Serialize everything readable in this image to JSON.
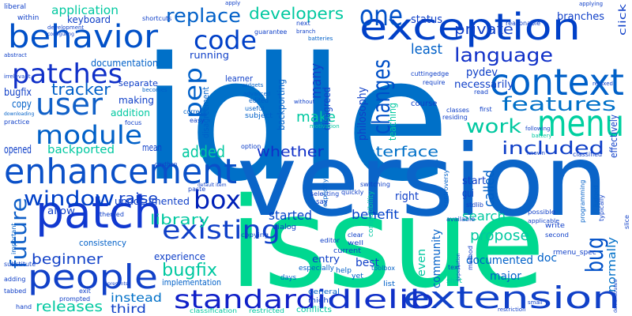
{
  "words": [
    {
      "text": "idle",
      "color": "#0070c8"
    },
    {
      "text": "version",
      "color": "#0a64c8"
    },
    {
      "text": "issue",
      "color": "#00d890"
    },
    {
      "text": "enhancement",
      "color": "#0a50c8"
    },
    {
      "text": "patch",
      "color": "#1038d0"
    },
    {
      "text": "people",
      "color": "#1040c8"
    },
    {
      "text": "behavior",
      "color": "#0050c8"
    },
    {
      "text": "exception",
      "color": "#0040c8"
    },
    {
      "text": "context",
      "color": "#0060c8"
    },
    {
      "text": "menu",
      "color": "#00d0a0"
    },
    {
      "text": "extension",
      "color": "#1040c8"
    },
    {
      "text": "standard",
      "color": "#1020c8"
    },
    {
      "text": "idlelib",
      "color": "#1030c8"
    },
    {
      "text": "existing",
      "color": "#1040c8"
    },
    {
      "text": "box",
      "color": "#0020b8"
    },
    {
      "text": "module",
      "color": "#0060c8"
    },
    {
      "text": "user",
      "color": "#1060c8"
    },
    {
      "text": "patches",
      "color": "#1030c8"
    },
    {
      "text": "code",
      "color": "#0040c8"
    },
    {
      "text": "one",
      "color": "#0050c8"
    },
    {
      "text": "pep",
      "color": "#0060c8"
    },
    {
      "text": "changes",
      "color": "#0050c8"
    },
    {
      "text": "language",
      "color": "#1030c8"
    },
    {
      "text": "features",
      "color": "#0070c8"
    },
    {
      "text": "work",
      "color": "#00c8a0"
    },
    {
      "text": "included",
      "color": "#1040c8"
    },
    {
      "text": "added",
      "color": "#00c8a0"
    },
    {
      "text": "whether",
      "color": "#1030c8"
    },
    {
      "text": "interface",
      "color": "#0070c8"
    },
    {
      "text": "window",
      "color": "#0040c8"
    },
    {
      "text": "replace",
      "color": "#0060c8"
    },
    {
      "text": "developers",
      "color": "#00c8a0"
    },
    {
      "text": "private",
      "color": "#1040c8"
    },
    {
      "text": "make",
      "color": "#00c8a0"
    },
    {
      "text": "least",
      "color": "#0060c8"
    },
    {
      "text": "tracker",
      "color": "#0060c8"
    },
    {
      "text": "future",
      "color": "#1060c8"
    },
    {
      "text": "raise",
      "color": "#1040c8"
    },
    {
      "text": "library",
      "color": "#00c8a0"
    },
    {
      "text": "bugfix",
      "color": "#00c8a0"
    },
    {
      "text": "bugfix",
      "color": "#1040c8"
    },
    {
      "text": "beginner",
      "color": "#1040c8"
    },
    {
      "text": "releases",
      "color": "#00c8a0"
    },
    {
      "text": "instead",
      "color": "#0070c8"
    },
    {
      "text": "third",
      "color": "#1040c8"
    },
    {
      "text": "started",
      "color": "#0040c8"
    },
    {
      "text": "benefit",
      "color": "#0040c8"
    },
    {
      "text": "search",
      "color": "#00c8a0"
    },
    {
      "text": "propose",
      "color": "#00c8a0"
    },
    {
      "text": "documented",
      "color": "#0060c8"
    },
    {
      "text": "major",
      "color": "#0060c8"
    },
    {
      "text": "doc",
      "color": "#0060c8"
    },
    {
      "text": "bug",
      "color": "#0050c8"
    },
    {
      "text": "normally",
      "color": "#0070c8"
    },
    {
      "text": "community",
      "color": "#0060c8"
    },
    {
      "text": "even",
      "color": "#00c8a0"
    },
    {
      "text": "best",
      "color": "#1040c8"
    },
    {
      "text": "entry",
      "color": "#1040c8"
    },
    {
      "text": "experience",
      "color": "#1040c8"
    },
    {
      "text": "implementation",
      "color": "#0060c8"
    },
    {
      "text": "many",
      "color": "#1040c8"
    },
    {
      "text": "disagreed",
      "color": "#1040c8"
    },
    {
      "text": "philosophy",
      "color": "#1040c8"
    },
    {
      "text": "teaching",
      "color": "#00c8a0"
    },
    {
      "text": "pydev",
      "color": "#1040c8"
    },
    {
      "text": "necessarily",
      "color": "#1040c8"
    },
    {
      "text": "status",
      "color": "#1040c8"
    },
    {
      "text": "application",
      "color": "#00c8a0"
    },
    {
      "text": "keyboard",
      "color": "#1040c8"
    },
    {
      "text": "documentation",
      "color": "#0060c8"
    },
    {
      "text": "running",
      "color": "#1040c8"
    },
    {
      "text": "learner",
      "color": "#1040c8"
    },
    {
      "text": "backporting",
      "color": "#0060c8"
    },
    {
      "text": "disagreement",
      "color": "#0060c8"
    },
    {
      "text": "backported",
      "color": "#00c8a0"
    },
    {
      "text": "opened",
      "color": "#1040c8"
    },
    {
      "text": "copy",
      "color": "#0060c8"
    },
    {
      "text": "making",
      "color": "#1040c8"
    },
    {
      "text": "addition",
      "color": "#00c8a0"
    },
    {
      "text": "separate",
      "color": "#1040c8"
    },
    {
      "text": "mean",
      "color": "#1040c8"
    },
    {
      "text": "gui",
      "color": "#1040c8"
    },
    {
      "text": "start",
      "color": "#1040c8"
    },
    {
      "text": "right",
      "color": "#1040c8"
    },
    {
      "text": "called",
      "color": "#0060c8"
    },
    {
      "text": "effectively",
      "color": "#1040c8"
    },
    {
      "text": "click",
      "color": "#1040c8"
    },
    {
      "text": "branches",
      "color": "#1040c8"
    },
    {
      "text": "undocumented",
      "color": "#1040c8"
    },
    {
      "text": "allow",
      "color": "#1040c8"
    },
    {
      "text": "consistency",
      "color": "#0060c8"
    },
    {
      "text": "edited",
      "color": "#0060c8"
    },
    {
      "text": "subject",
      "color": "#0060c8"
    },
    {
      "text": "shift",
      "color": "#00c8a0"
    },
    {
      "text": "list",
      "color": "#0060c8"
    },
    {
      "text": "yet",
      "color": "#0060c8"
    },
    {
      "text": "help",
      "color": "#0060c8"
    },
    {
      "text": "days",
      "color": "#0060c8"
    },
    {
      "text": "might",
      "color": "#1040c8"
    },
    {
      "text": "general",
      "color": "#0060c8"
    },
    {
      "text": "conflicts",
      "color": "#00c8a0"
    },
    {
      "text": "restricted",
      "color": "#00c8a0"
    },
    {
      "text": "classification",
      "color": "#00c8a0"
    },
    {
      "text": "toolbox",
      "color": "#0060c8"
    },
    {
      "text": "copying",
      "color": "#1040c8"
    },
    {
      "text": "editor",
      "color": "#1040c8"
    },
    {
      "text": "dialog",
      "color": "#1040c8"
    },
    {
      "text": "clear",
      "color": "#1040c8"
    },
    {
      "text": "well",
      "color": "#1040c8"
    },
    {
      "text": "current",
      "color": "#1040c8"
    },
    {
      "text": "especially",
      "color": "#0060c8"
    },
    {
      "text": "say",
      "color": "#1040c8"
    },
    {
      "text": "write",
      "color": "#1040c8"
    },
    {
      "text": "second",
      "color": "#1040c8"
    },
    {
      "text": "possible",
      "color": "#1040c8"
    },
    {
      "text": "applicable",
      "color": "#1040c8"
    },
    {
      "text": "slice",
      "color": "#1040c8"
    },
    {
      "text": "typically",
      "color": "#1040c8"
    },
    {
      "text": "programming",
      "color": "#0060c8"
    },
    {
      "text": "judged",
      "color": "#0060c8"
    },
    {
      "text": "controversy",
      "color": "#0060c8"
    },
    {
      "text": "stdlib",
      "color": "#1040c8"
    },
    {
      "text": "switching",
      "color": "#1040c8"
    },
    {
      "text": "selecting",
      "color": "#1040c8"
    },
    {
      "text": "quickly",
      "color": "#1040c8"
    },
    {
      "text": "explicitly",
      "color": "#0060c8"
    },
    {
      "text": "compatibility",
      "color": "#00c8a0"
    },
    {
      "text": "themed",
      "color": "#1040c8"
    },
    {
      "text": "option",
      "color": "#1040c8"
    },
    {
      "text": "cpython",
      "color": "#1040c8"
    },
    {
      "text": "focus",
      "color": "#1040c8"
    },
    {
      "text": "easy",
      "color": "#1040c8"
    },
    {
      "text": "correct",
      "color": "#0060c8"
    },
    {
      "text": "useful",
      "color": "#0060c8"
    },
    {
      "text": "without",
      "color": "#1040c8"
    },
    {
      "text": "advanced",
      "color": "#0060c8"
    },
    {
      "text": "widgets",
      "color": "#0060c8"
    },
    {
      "text": "becomes",
      "color": "#0060c8"
    },
    {
      "text": "guarantee",
      "color": "#1040c8"
    },
    {
      "text": "within",
      "color": "#1040c8"
    },
    {
      "text": "shortcuts",
      "color": "#1040c8"
    },
    {
      "text": "liberal",
      "color": "#1040c8"
    },
    {
      "text": "development",
      "color": "#1040c8"
    },
    {
      "text": "configuring",
      "color": "#1040c8"
    },
    {
      "text": "abstract",
      "color": "#1040c8"
    },
    {
      "text": "irrelevant",
      "color": "#1040c8"
    },
    {
      "text": "practice",
      "color": "#1040c8"
    },
    {
      "text": "downloading",
      "color": "#0060c8"
    },
    {
      "text": "important",
      "color": "#0060c8"
    },
    {
      "text": "substitute",
      "color": "#1040c8"
    },
    {
      "text": "adding",
      "color": "#1040c8"
    },
    {
      "text": "tabbed",
      "color": "#1040c8"
    },
    {
      "text": "hand",
      "color": "#1040c8"
    },
    {
      "text": "exit",
      "color": "#1040c8"
    },
    {
      "text": "prompted",
      "color": "#1040c8"
    },
    {
      "text": "represents",
      "color": "#1040c8"
    },
    {
      "text": "apply",
      "color": "#1040c8"
    },
    {
      "text": "next",
      "color": "#1040c8"
    },
    {
      "text": "branch",
      "color": "#1040c8"
    },
    {
      "text": "applying",
      "color": "#1040c8"
    },
    {
      "text": "batteries",
      "color": "#0060c8"
    },
    {
      "text": "cuttingedge",
      "color": "#1040c8"
    },
    {
      "text": "reasonable",
      "color": "#1040c8"
    },
    {
      "text": "relaxed",
      "color": "#1040c8"
    },
    {
      "text": "require",
      "color": "#1040c8"
    },
    {
      "text": "read",
      "color": "#1040c8"
    },
    {
      "text": "first",
      "color": "#1040c8"
    },
    {
      "text": "residing",
      "color": "#1040c8"
    },
    {
      "text": "classes",
      "color": "#1040c8"
    },
    {
      "text": "course",
      "color": "#1040c8"
    },
    {
      "text": "motivation",
      "color": "#00c8a0"
    },
    {
      "text": "battery",
      "color": "#00c8a0"
    },
    {
      "text": "following",
      "color": "#1040c8"
    },
    {
      "text": "known",
      "color": "#1040c8"
    },
    {
      "text": "classified",
      "color": "#1040c8"
    },
    {
      "text": "rmenu_spec",
      "color": "#1040c8"
    },
    {
      "text": "demonstrated",
      "color": "#1040c8"
    },
    {
      "text": "small",
      "color": "#1040c8"
    },
    {
      "text": "restriction",
      "color": "#1040c8"
    },
    {
      "text": "method",
      "color": "#1040c8"
    },
    {
      "text": "text",
      "color": "#1040c8"
    },
    {
      "text": "available",
      "color": "#1040c8"
    },
    {
      "text": "expectation",
      "color": "#1040c8"
    },
    {
      "text": "paste",
      "color": "#1040c8"
    },
    {
      "text": "default item",
      "color": "#1040c8"
    }
  ]
}
